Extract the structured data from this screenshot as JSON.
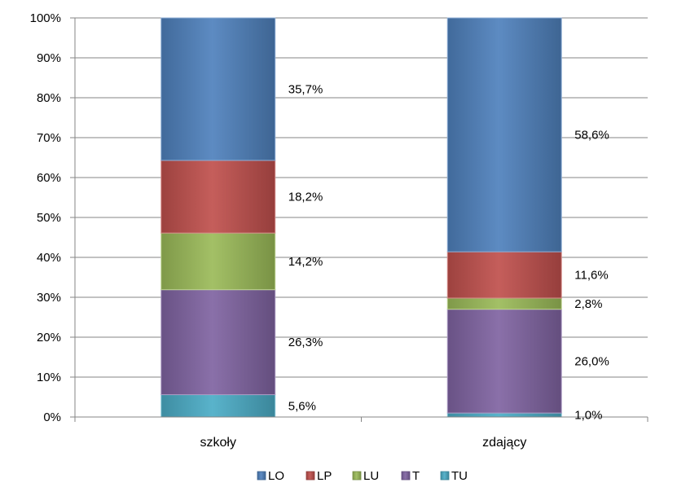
{
  "chart_data": {
    "type": "bar",
    "stacked": "percent",
    "categories": [
      "szkoły",
      "zdający"
    ],
    "series": [
      {
        "name": "TU",
        "values": [
          5.6,
          1.0
        ],
        "labels": [
          "5,6%",
          "1,0%"
        ],
        "color": "#4BACC6"
      },
      {
        "name": "T",
        "values": [
          26.3,
          26.0
        ],
        "labels": [
          "26,3%",
          "26,0%"
        ],
        "color": "#8064A2"
      },
      {
        "name": "LU",
        "values": [
          14.2,
          2.8
        ],
        "labels": [
          "14,2%",
          "2,8%"
        ],
        "color": "#9BBB59"
      },
      {
        "name": "LP",
        "values": [
          18.2,
          11.6
        ],
        "labels": [
          "18,2%",
          "11,6%"
        ],
        "color": "#C0504D"
      },
      {
        "name": "LO",
        "values": [
          35.7,
          58.6
        ],
        "labels": [
          "35,7%",
          "58,6%"
        ],
        "color": "#4F81BD"
      }
    ],
    "legend_order": [
      "LO",
      "LP",
      "LU",
      "T",
      "TU"
    ],
    "ylim": [
      0,
      100
    ],
    "yticks": [
      "0%",
      "10%",
      "20%",
      "30%",
      "40%",
      "50%",
      "60%",
      "70%",
      "80%",
      "90%",
      "100%"
    ],
    "xlabel": "",
    "ylabel": "",
    "title": "",
    "grid": true,
    "legend_position": "bottom"
  }
}
